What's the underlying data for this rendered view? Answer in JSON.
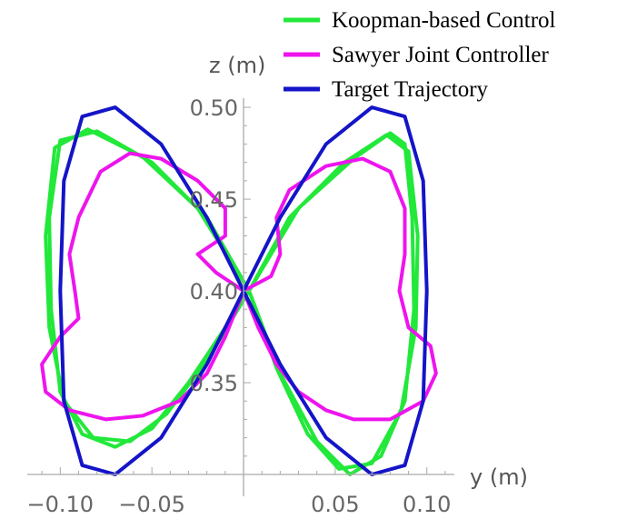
{
  "chart_data": {
    "type": "line",
    "title": "",
    "xlabel": "y (m)",
    "ylabel": "z (m)",
    "xlim": [
      -0.118,
      0.115
    ],
    "ylim": [
      0.3,
      0.505
    ],
    "x_ticks": [
      {
        "value": -0.1,
        "label": "−0.10"
      },
      {
        "value": -0.05,
        "label": "−0.05"
      },
      {
        "value": 0.05,
        "label": "0.05"
      },
      {
        "value": 0.1,
        "label": "0.10"
      }
    ],
    "y_ticks": [
      {
        "value": 0.35,
        "label": "0.35"
      },
      {
        "value": 0.4,
        "label": "0.40"
      },
      {
        "value": 0.45,
        "label": "0.45"
      },
      {
        "value": 0.5,
        "label": "0.50"
      }
    ],
    "grid": false,
    "legend_position": "top-right",
    "series": [
      {
        "name": "Koopman-based Control",
        "color": "#22e83a",
        "points": [
          [
            0.003,
            0.4
          ],
          [
            0.03,
            0.445
          ],
          [
            0.06,
            0.472
          ],
          [
            0.08,
            0.486
          ],
          [
            0.088,
            0.48
          ],
          [
            0.092,
            0.44
          ],
          [
            0.093,
            0.39
          ],
          [
            0.088,
            0.34
          ],
          [
            0.075,
            0.31
          ],
          [
            0.058,
            0.3
          ],
          [
            0.04,
            0.318
          ],
          [
            0.02,
            0.355
          ],
          [
            0.003,
            0.4
          ],
          [
            -0.02,
            0.44
          ],
          [
            -0.05,
            0.47
          ],
          [
            -0.08,
            0.487
          ],
          [
            -0.1,
            0.482
          ],
          [
            -0.106,
            0.44
          ],
          [
            -0.105,
            0.39
          ],
          [
            -0.1,
            0.345
          ],
          [
            -0.088,
            0.322
          ],
          [
            -0.07,
            0.315
          ],
          [
            -0.05,
            0.325
          ],
          [
            -0.03,
            0.35
          ],
          [
            -0.01,
            0.38
          ],
          [
            0.003,
            0.4
          ],
          [
            0.025,
            0.44
          ],
          [
            0.055,
            0.47
          ],
          [
            0.078,
            0.485
          ],
          [
            0.09,
            0.476
          ],
          [
            0.095,
            0.43
          ],
          [
            0.094,
            0.38
          ],
          [
            0.086,
            0.335
          ],
          [
            0.07,
            0.306
          ],
          [
            0.052,
            0.303
          ],
          [
            0.035,
            0.322
          ],
          [
            0.018,
            0.358
          ],
          [
            0.003,
            0.4
          ],
          [
            -0.025,
            0.445
          ],
          [
            -0.055,
            0.473
          ],
          [
            -0.085,
            0.488
          ],
          [
            -0.103,
            0.478
          ],
          [
            -0.108,
            0.43
          ],
          [
            -0.106,
            0.38
          ],
          [
            -0.098,
            0.34
          ],
          [
            -0.082,
            0.32
          ],
          [
            -0.062,
            0.318
          ],
          [
            -0.042,
            0.333
          ],
          [
            -0.02,
            0.362
          ],
          [
            0.003,
            0.4
          ]
        ]
      },
      {
        "name": "Sawyer Joint Controller",
        "color": "#ee14ee",
        "points": [
          [
            0.0,
            0.4
          ],
          [
            0.015,
            0.408
          ],
          [
            0.02,
            0.42
          ],
          [
            0.018,
            0.44
          ],
          [
            0.025,
            0.455
          ],
          [
            0.045,
            0.468
          ],
          [
            0.065,
            0.472
          ],
          [
            0.08,
            0.465
          ],
          [
            0.088,
            0.445
          ],
          [
            0.088,
            0.42
          ],
          [
            0.085,
            0.4
          ],
          [
            0.09,
            0.38
          ],
          [
            0.102,
            0.37
          ],
          [
            0.105,
            0.355
          ],
          [
            0.098,
            0.34
          ],
          [
            0.08,
            0.33
          ],
          [
            0.06,
            0.33
          ],
          [
            0.045,
            0.335
          ],
          [
            0.03,
            0.345
          ],
          [
            0.018,
            0.36
          ],
          [
            0.008,
            0.38
          ],
          [
            0.0,
            0.4
          ],
          [
            -0.015,
            0.41
          ],
          [
            -0.025,
            0.42
          ],
          [
            -0.01,
            0.43
          ],
          [
            -0.01,
            0.445
          ],
          [
            -0.025,
            0.46
          ],
          [
            -0.045,
            0.472
          ],
          [
            -0.062,
            0.475
          ],
          [
            -0.078,
            0.465
          ],
          [
            -0.09,
            0.44
          ],
          [
            -0.095,
            0.42
          ],
          [
            -0.092,
            0.4
          ],
          [
            -0.09,
            0.385
          ],
          [
            -0.1,
            0.375
          ],
          [
            -0.11,
            0.36
          ],
          [
            -0.108,
            0.345
          ],
          [
            -0.095,
            0.335
          ],
          [
            -0.075,
            0.33
          ],
          [
            -0.055,
            0.332
          ],
          [
            -0.035,
            0.34
          ],
          [
            -0.02,
            0.355
          ],
          [
            -0.01,
            0.375
          ],
          [
            0.0,
            0.4
          ]
        ]
      },
      {
        "name": "Target Trajectory",
        "color": "#1414c8",
        "points": [
          [
            0.0,
            0.4
          ],
          [
            0.02,
            0.44
          ],
          [
            0.045,
            0.48
          ],
          [
            0.07,
            0.5
          ],
          [
            0.088,
            0.495
          ],
          [
            0.098,
            0.46
          ],
          [
            0.1,
            0.4
          ],
          [
            0.098,
            0.34
          ],
          [
            0.088,
            0.305
          ],
          [
            0.07,
            0.3
          ],
          [
            0.045,
            0.32
          ],
          [
            0.02,
            0.36
          ],
          [
            0.0,
            0.4
          ],
          [
            -0.02,
            0.44
          ],
          [
            -0.045,
            0.48
          ],
          [
            -0.07,
            0.5
          ],
          [
            -0.088,
            0.495
          ],
          [
            -0.098,
            0.46
          ],
          [
            -0.1,
            0.4
          ],
          [
            -0.098,
            0.34
          ],
          [
            -0.088,
            0.305
          ],
          [
            -0.07,
            0.3
          ],
          [
            -0.045,
            0.32
          ],
          [
            -0.02,
            0.36
          ],
          [
            0.0,
            0.4
          ]
        ]
      }
    ]
  }
}
